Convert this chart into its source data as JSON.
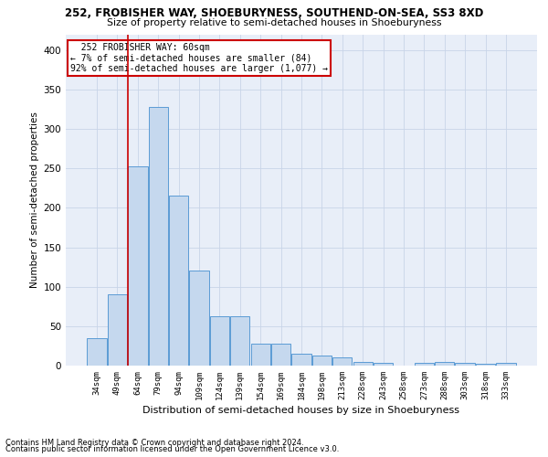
{
  "title1": "252, FROBISHER WAY, SHOEBURYNESS, SOUTHEND-ON-SEA, SS3 8XD",
  "title2": "Size of property relative to semi-detached houses in Shoeburyness",
  "xlabel": "Distribution of semi-detached houses by size in Shoeburyness",
  "ylabel": "Number of semi-detached properties",
  "footnote1": "Contains HM Land Registry data © Crown copyright and database right 2024.",
  "footnote2": "Contains public sector information licensed under the Open Government Licence v3.0.",
  "bar_labels": [
    "34sqm",
    "49sqm",
    "64sqm",
    "79sqm",
    "94sqm",
    "109sqm",
    "124sqm",
    "139sqm",
    "154sqm",
    "169sqm",
    "184sqm",
    "198sqm",
    "213sqm",
    "228sqm",
    "243sqm",
    "258sqm",
    "273sqm",
    "288sqm",
    "303sqm",
    "318sqm",
    "333sqm"
  ],
  "bar_values": [
    35,
    90,
    253,
    328,
    215,
    120,
    62,
    62,
    28,
    28,
    15,
    13,
    10,
    5,
    3,
    0,
    3,
    5,
    4,
    2,
    4
  ],
  "bar_color": "#c5d8ee",
  "bar_edge_color": "#5b9bd5",
  "grid_color": "#c8d4e8",
  "bg_color": "#e8eef8",
  "property_label": "252 FROBISHER WAY: 60sqm",
  "pct_smaller": 7,
  "n_smaller": 84,
  "pct_larger": 92,
  "n_larger": 1077,
  "ylim": [
    0,
    420
  ],
  "yticks": [
    0,
    50,
    100,
    150,
    200,
    250,
    300,
    350,
    400
  ],
  "annotation_box_color": "#cc0000",
  "vline_x": 1.5
}
